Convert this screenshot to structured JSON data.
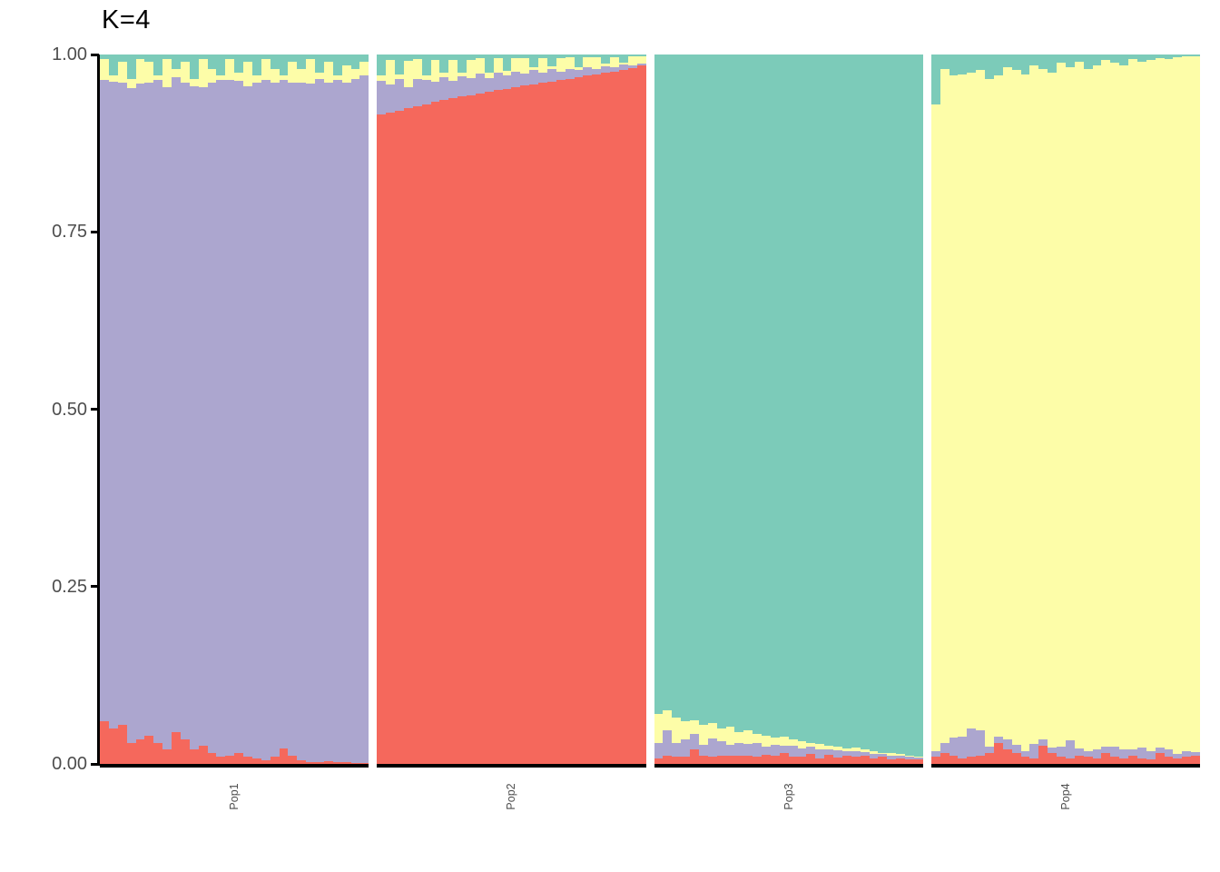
{
  "title": "K=4",
  "y_axis": {
    "tick_labels": [
      "1.00",
      "0.75",
      "0.50",
      "0.25",
      "0.00"
    ],
    "tick_values": [
      1.0,
      0.75,
      0.5,
      0.25,
      0.0
    ]
  },
  "populations": [
    "Pop1",
    "Pop2",
    "Pop3",
    "Pop4"
  ],
  "colors": {
    "red": "#F5685C",
    "purple": "#ACA6CF",
    "yellow": "#FDFDA8",
    "teal": "#7CCBB9"
  },
  "chart_data": {
    "type": "bar",
    "stacked": true,
    "title": "K=4",
    "xlabel": "",
    "ylabel": "",
    "ylim": [
      0,
      1
    ],
    "grid": false,
    "legend": false,
    "y_tick_labels": [
      "0.00",
      "0.25",
      "0.50",
      "0.75",
      "1.00"
    ],
    "cluster_order_bottom_to_top": [
      "red",
      "purple",
      "yellow",
      "teal"
    ],
    "cluster_colors": {
      "red": "#F5685C",
      "purple": "#ACA6CF",
      "yellow": "#FDFDA8",
      "teal": "#7CCBB9"
    },
    "panels": [
      {
        "population": "Pop1",
        "individuals": 30,
        "series": {
          "red": [
            0.06,
            0.05,
            0.055,
            0.03,
            0.035,
            0.04,
            0.03,
            0.02,
            0.045,
            0.035,
            0.02,
            0.025,
            0.015,
            0.01,
            0.012,
            0.015,
            0.01,
            0.008,
            0.005,
            0.01,
            0.022,
            0.012,
            0.005,
            0.003,
            0.002,
            0.004,
            0.002,
            0.002,
            0.001,
            0.001
          ],
          "purple": [
            0.904,
            0.912,
            0.905,
            0.923,
            0.924,
            0.92,
            0.934,
            0.934,
            0.923,
            0.925,
            0.935,
            0.929,
            0.945,
            0.954,
            0.952,
            0.948,
            0.945,
            0.952,
            0.959,
            0.95,
            0.942,
            0.948,
            0.955,
            0.956,
            0.963,
            0.956,
            0.962,
            0.958,
            0.964,
            0.969
          ],
          "yellow": [
            0.03,
            0.008,
            0.03,
            0.012,
            0.035,
            0.03,
            0.006,
            0.04,
            0.012,
            0.03,
            0.01,
            0.04,
            0.02,
            0.006,
            0.03,
            0.012,
            0.035,
            0.01,
            0.03,
            0.02,
            0.006,
            0.03,
            0.02,
            0.035,
            0.01,
            0.03,
            0.006,
            0.025,
            0.015,
            0.02
          ],
          "teal": [
            0.006,
            0.03,
            0.01,
            0.035,
            0.006,
            0.01,
            0.03,
            0.006,
            0.02,
            0.01,
            0.035,
            0.006,
            0.02,
            0.03,
            0.006,
            0.025,
            0.01,
            0.03,
            0.006,
            0.02,
            0.03,
            0.01,
            0.02,
            0.006,
            0.025,
            0.01,
            0.03,
            0.015,
            0.02,
            0.01
          ]
        }
      },
      {
        "population": "Pop2",
        "individuals": 30,
        "series": {
          "red": [
            0.915,
            0.918,
            0.921,
            0.924,
            0.927,
            0.93,
            0.933,
            0.936,
            0.939,
            0.941,
            0.943,
            0.945,
            0.947,
            0.95,
            0.952,
            0.954,
            0.956,
            0.958,
            0.96,
            0.962,
            0.964,
            0.966,
            0.968,
            0.97,
            0.972,
            0.974,
            0.976,
            0.978,
            0.981,
            0.985
          ],
          "purple": [
            0.048,
            0.04,
            0.044,
            0.03,
            0.038,
            0.034,
            0.028,
            0.032,
            0.024,
            0.028,
            0.024,
            0.028,
            0.02,
            0.024,
            0.019,
            0.022,
            0.017,
            0.02,
            0.014,
            0.017,
            0.012,
            0.014,
            0.01,
            0.012,
            0.008,
            0.01,
            0.006,
            0.008,
            0.004,
            0.002
          ],
          "yellow": [
            0.007,
            0.034,
            0.007,
            0.037,
            0.028,
            0.007,
            0.031,
            0.006,
            0.03,
            0.006,
            0.026,
            0.022,
            0.007,
            0.021,
            0.006,
            0.019,
            0.022,
            0.004,
            0.021,
            0.004,
            0.019,
            0.016,
            0.004,
            0.014,
            0.016,
            0.003,
            0.014,
            0.003,
            0.012,
            0.01
          ],
          "teal": [
            0.03,
            0.008,
            0.028,
            0.009,
            0.007,
            0.029,
            0.008,
            0.026,
            0.007,
            0.025,
            0.007,
            0.005,
            0.026,
            0.005,
            0.023,
            0.005,
            0.005,
            0.018,
            0.005,
            0.017,
            0.005,
            0.004,
            0.018,
            0.004,
            0.004,
            0.013,
            0.004,
            0.011,
            0.003,
            0.003
          ]
        }
      },
      {
        "population": "Pop3",
        "individuals": 30,
        "series": {
          "red": [
            0.008,
            0.012,
            0.01,
            0.01,
            0.02,
            0.012,
            0.01,
            0.012,
            0.012,
            0.012,
            0.012,
            0.01,
            0.013,
            0.012,
            0.016,
            0.01,
            0.01,
            0.014,
            0.008,
            0.013,
            0.009,
            0.012,
            0.01,
            0.012,
            0.008,
            0.01,
            0.007,
            0.008,
            0.007,
            0.007
          ],
          "purple": [
            0.022,
            0.035,
            0.02,
            0.025,
            0.022,
            0.015,
            0.026,
            0.02,
            0.015,
            0.018,
            0.016,
            0.02,
            0.012,
            0.015,
            0.01,
            0.016,
            0.012,
            0.01,
            0.012,
            0.008,
            0.01,
            0.006,
            0.008,
            0.005,
            0.006,
            0.004,
            0.005,
            0.004,
            0.003,
            0.002
          ],
          "yellow": [
            0.04,
            0.028,
            0.035,
            0.025,
            0.02,
            0.028,
            0.022,
            0.018,
            0.025,
            0.015,
            0.02,
            0.012,
            0.015,
            0.01,
            0.012,
            0.008,
            0.01,
            0.006,
            0.008,
            0.005,
            0.006,
            0.004,
            0.005,
            0.003,
            0.004,
            0.002,
            0.003,
            0.002,
            0.002,
            0.001
          ],
          "teal": [
            0.93,
            0.925,
            0.935,
            0.94,
            0.938,
            0.945,
            0.942,
            0.95,
            0.948,
            0.955,
            0.952,
            0.958,
            0.96,
            0.963,
            0.962,
            0.966,
            0.968,
            0.97,
            0.972,
            0.974,
            0.975,
            0.978,
            0.977,
            0.98,
            0.982,
            0.984,
            0.985,
            0.986,
            0.988,
            0.99
          ]
        }
      },
      {
        "population": "Pop4",
        "individuals": 30,
        "series": {
          "red": [
            0.01,
            0.015,
            0.012,
            0.008,
            0.01,
            0.012,
            0.015,
            0.03,
            0.02,
            0.015,
            0.01,
            0.008,
            0.025,
            0.015,
            0.01,
            0.008,
            0.012,
            0.01,
            0.008,
            0.015,
            0.01,
            0.008,
            0.012,
            0.008,
            0.006,
            0.015,
            0.01,
            0.008,
            0.01,
            0.012
          ],
          "purple": [
            0.008,
            0.015,
            0.025,
            0.03,
            0.04,
            0.035,
            0.01,
            0.008,
            0.015,
            0.012,
            0.008,
            0.02,
            0.01,
            0.008,
            0.015,
            0.025,
            0.01,
            0.008,
            0.012,
            0.01,
            0.015,
            0.012,
            0.008,
            0.015,
            0.012,
            0.008,
            0.01,
            0.006,
            0.008,
            0.005
          ],
          "yellow": [
            0.912,
            0.95,
            0.933,
            0.934,
            0.925,
            0.931,
            0.94,
            0.932,
            0.947,
            0.951,
            0.954,
            0.957,
            0.945,
            0.952,
            0.963,
            0.949,
            0.968,
            0.962,
            0.965,
            0.967,
            0.963,
            0.965,
            0.974,
            0.967,
            0.974,
            0.972,
            0.974,
            0.982,
            0.979,
            0.981
          ],
          "teal": [
            0.07,
            0.02,
            0.03,
            0.028,
            0.025,
            0.022,
            0.035,
            0.03,
            0.018,
            0.022,
            0.028,
            0.015,
            0.02,
            0.025,
            0.012,
            0.018,
            0.01,
            0.02,
            0.015,
            0.008,
            0.012,
            0.015,
            0.006,
            0.01,
            0.008,
            0.005,
            0.006,
            0.004,
            0.003,
            0.002
          ]
        }
      }
    ]
  }
}
